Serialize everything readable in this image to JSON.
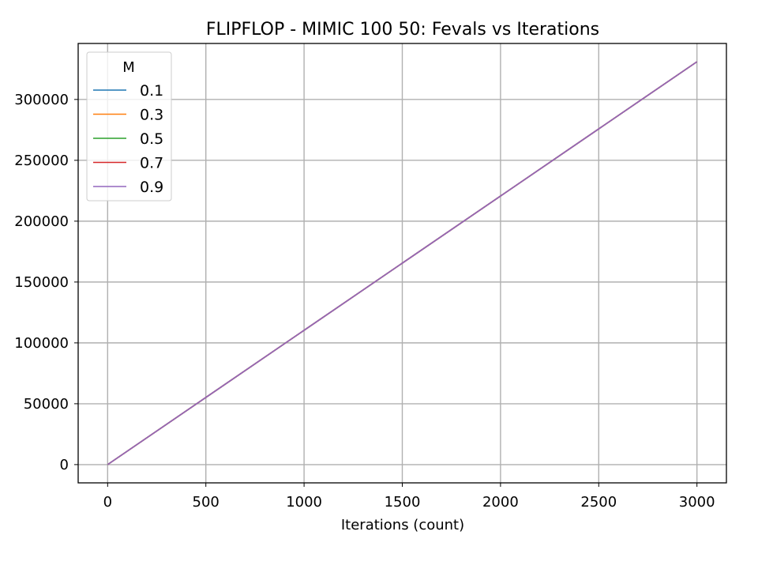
{
  "chart_data": {
    "type": "line",
    "title": "FLIPFLOP - MIMIC 100 50: Fevals vs Iterations",
    "xlabel": "Iterations (count)",
    "ylabel": "",
    "xlim": [
      -150,
      3150
    ],
    "ylim": [
      -15000,
      346000
    ],
    "xticks": [
      0,
      500,
      1000,
      1500,
      2000,
      2500,
      3000
    ],
    "yticks": [
      0,
      50000,
      100000,
      150000,
      200000,
      250000,
      300000
    ],
    "xtick_labels": [
      "0",
      "500",
      "1000",
      "1500",
      "2000",
      "2500",
      "3000"
    ],
    "ytick_labels": [
      "0",
      "50000",
      "100000",
      "150000",
      "200000",
      "250000",
      "300000"
    ],
    "grid": true,
    "legend": {
      "title": "M",
      "placement": "top-left"
    },
    "series": [
      {
        "name": "0.1",
        "color": "#1f77b4",
        "x": [
          0,
          3000
        ],
        "y": [
          0,
          331000
        ]
      },
      {
        "name": "0.3",
        "color": "#ff7f0e",
        "x": [
          0,
          3000
        ],
        "y": [
          0,
          331000
        ]
      },
      {
        "name": "0.5",
        "color": "#2ca02c",
        "x": [
          0,
          3000
        ],
        "y": [
          0,
          331000
        ]
      },
      {
        "name": "0.7",
        "color": "#d62728",
        "x": [
          0,
          3000
        ],
        "y": [
          0,
          331000
        ]
      },
      {
        "name": "0.9",
        "color": "#9467bd",
        "x": [
          0,
          3000
        ],
        "y": [
          0,
          331000
        ]
      }
    ]
  }
}
